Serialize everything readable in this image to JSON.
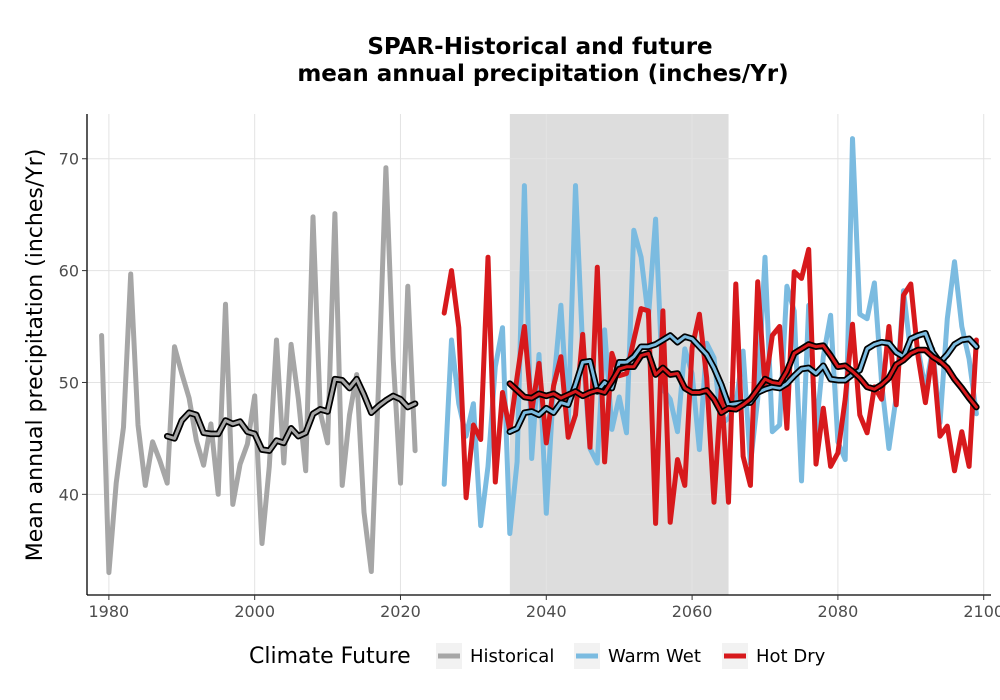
{
  "chart_data": {
    "type": "line",
    "title_line1": "SPAR-Historical and future",
    "title_line2": "mean annual precipitation (inches/Yr)",
    "xlabel": "",
    "ylabel": "Mean annual precipitation (inches/Yr)",
    "xlim": [
      1977,
      2101
    ],
    "ylim": [
      31,
      74
    ],
    "xticks": [
      "1980",
      "2000",
      "2020",
      "2040",
      "2060",
      "2080",
      "2100"
    ],
    "yticks": [
      "40",
      "50",
      "60",
      "70"
    ],
    "grid": true,
    "shaded_period": [
      2035,
      2065
    ],
    "legend": {
      "title": "Climate Future",
      "position": "bottom",
      "items": [
        {
          "label": "Historical",
          "color": "#a6a6a6"
        },
        {
          "label": "Warm Wet",
          "color": "#7bbbe0"
        },
        {
          "label": "Hot Dry",
          "color": "#d7191c"
        }
      ]
    },
    "series": [
      {
        "name": "Historical",
        "color": "#a6a6a6",
        "x": [
          1979,
          1980,
          1981,
          1982,
          1983,
          1984,
          1985,
          1986,
          1987,
          1988,
          1989,
          1990,
          1991,
          1992,
          1993,
          1994,
          1995,
          1996,
          1997,
          1998,
          1999,
          2000,
          2001,
          2002,
          2003,
          2004,
          2005,
          2006,
          2007,
          2008,
          2009,
          2010,
          2011,
          2012,
          2013,
          2014,
          2015,
          2016,
          2017,
          2018,
          2019,
          2020,
          2021,
          2022
        ],
        "values": [
          54.2,
          33.0,
          41.0,
          46.0,
          59.7,
          46.2,
          40.8,
          44.7,
          43.0,
          41.0,
          53.2,
          50.8,
          48.6,
          44.8,
          42.6,
          46.3,
          40.0,
          57.0,
          39.1,
          42.7,
          44.5,
          48.8,
          35.6,
          42.5,
          53.8,
          42.8,
          53.4,
          48.5,
          42.1,
          64.8,
          47.3,
          44.6,
          65.1,
          40.8,
          47.1,
          50.7,
          38.4,
          33.1,
          49.9,
          69.2,
          52.1,
          41.0,
          58.6,
          43.9
        ]
      },
      {
        "name": "Historical (smoothed)",
        "color": "#a6a6a6",
        "smoothed": true,
        "x": [
          1988,
          1989,
          1990,
          1991,
          1992,
          1993,
          1994,
          1995,
          1996,
          1997,
          1998,
          1999,
          2000,
          2001,
          2002,
          2003,
          2004,
          2005,
          2006,
          2007,
          2008,
          2009,
          2010,
          2011,
          2012,
          2013,
          2014,
          2015,
          2016,
          2017,
          2018,
          2019,
          2020,
          2021,
          2022
        ],
        "values": [
          45.2,
          45.0,
          46.6,
          47.3,
          47.1,
          45.5,
          45.4,
          45.4,
          46.6,
          46.3,
          46.5,
          45.6,
          45.4,
          44.0,
          43.9,
          44.8,
          44.6,
          45.9,
          45.2,
          45.5,
          47.2,
          47.6,
          47.4,
          50.3,
          50.2,
          49.5,
          50.3,
          48.9,
          47.3,
          47.9,
          48.4,
          48.8,
          48.5,
          47.8,
          48.1
        ]
      },
      {
        "name": "Warm Wet",
        "color": "#7bbbe0",
        "x": [
          2026,
          2027,
          2028,
          2029,
          2030,
          2031,
          2032,
          2033,
          2034,
          2035,
          2036,
          2037,
          2038,
          2039,
          2040,
          2041,
          2042,
          2043,
          2044,
          2045,
          2046,
          2047,
          2048,
          2049,
          2050,
          2051,
          2052,
          2053,
          2054,
          2055,
          2056,
          2057,
          2058,
          2059,
          2060,
          2061,
          2062,
          2063,
          2064,
          2065,
          2066,
          2067,
          2068,
          2069,
          2070,
          2071,
          2072,
          2073,
          2074,
          2075,
          2076,
          2077,
          2078,
          2079,
          2080,
          2081,
          2082,
          2083,
          2084,
          2085,
          2086,
          2087,
          2088,
          2089,
          2090,
          2091,
          2092,
          2093,
          2094,
          2095,
          2096,
          2097,
          2098,
          2099
        ],
        "values": [
          40.9,
          53.8,
          48.1,
          45.2,
          48.1,
          37.2,
          42.5,
          51.4,
          54.9,
          36.5,
          42.9,
          67.6,
          43.2,
          52.5,
          38.3,
          49.7,
          56.9,
          46.3,
          67.6,
          53.0,
          44.1,
          42.8,
          54.7,
          45.8,
          48.7,
          45.5,
          63.6,
          61.2,
          55.8,
          64.6,
          49.4,
          48.5,
          45.6,
          53.0,
          50.8,
          44.0,
          53.5,
          52.2,
          46.3,
          46.8,
          48.0,
          52.8,
          42.7,
          48.5,
          61.2,
          45.6,
          46.2,
          58.6,
          56.4,
          41.2,
          56.9,
          45.6,
          52.3,
          56.0,
          44.7,
          43.1,
          71.8,
          56.1,
          55.7,
          58.9,
          50.0,
          44.1,
          48.7,
          58.2,
          52.5,
          53.0,
          49.4,
          53.0,
          46.4,
          55.7,
          60.8,
          55.0,
          52.1,
          47.2
        ]
      },
      {
        "name": "Hot Dry",
        "color": "#d7191c",
        "x": [
          2026,
          2027,
          2028,
          2029,
          2030,
          2031,
          2032,
          2033,
          2034,
          2035,
          2036,
          2037,
          2038,
          2039,
          2040,
          2041,
          2042,
          2043,
          2044,
          2045,
          2046,
          2047,
          2048,
          2049,
          2050,
          2051,
          2052,
          2053,
          2054,
          2055,
          2056,
          2057,
          2058,
          2059,
          2060,
          2061,
          2062,
          2063,
          2064,
          2065,
          2066,
          2067,
          2068,
          2069,
          2070,
          2071,
          2072,
          2073,
          2074,
          2075,
          2076,
          2077,
          2078,
          2079,
          2080,
          2081,
          2082,
          2083,
          2084,
          2085,
          2086,
          2087,
          2088,
          2089,
          2090,
          2091,
          2092,
          2093,
          2094,
          2095,
          2096,
          2097,
          2098,
          2099
        ],
        "values": [
          56.2,
          60.0,
          54.9,
          39.7,
          46.2,
          44.9,
          61.2,
          41.1,
          49.1,
          45.7,
          50.5,
          55.0,
          47.4,
          51.7,
          44.6,
          49.7,
          52.3,
          45.1,
          47.1,
          54.3,
          44.2,
          60.3,
          42.9,
          52.6,
          50.6,
          50.8,
          53.8,
          56.6,
          56.4,
          37.4,
          56.4,
          37.5,
          43.1,
          40.8,
          53.1,
          56.1,
          50.4,
          39.3,
          49.5,
          39.3,
          58.8,
          43.4,
          40.8,
          59.0,
          49.6,
          54.2,
          55.0,
          45.9,
          59.9,
          59.3,
          61.9,
          42.7,
          47.7,
          42.5,
          43.7,
          48.5,
          55.2,
          47.1,
          45.5,
          49.6,
          48.5,
          55.0,
          48.0,
          57.8,
          58.8,
          52.3,
          48.2,
          52.7,
          45.2,
          46.1,
          42.1,
          45.6,
          42.5,
          53.8
        ]
      },
      {
        "name": "Warm Wet (smoothed)",
        "color": "#7bbbe0",
        "smoothed": true,
        "x": [
          2035,
          2036,
          2037,
          2038,
          2039,
          2040,
          2041,
          2042,
          2043,
          2044,
          2045,
          2046,
          2047,
          2048,
          2049,
          2050,
          2051,
          2052,
          2053,
          2054,
          2055,
          2056,
          2057,
          2058,
          2059,
          2060,
          2061,
          2062,
          2063,
          2064,
          2065,
          2066,
          2067,
          2068,
          2069,
          2070,
          2071,
          2072,
          2073,
          2074,
          2075,
          2076,
          2077,
          2078,
          2079,
          2080,
          2081,
          2082,
          2083,
          2084,
          2085,
          2086,
          2087,
          2088,
          2089,
          2090,
          2091,
          2092,
          2093,
          2094,
          2095,
          2096,
          2097,
          2098,
          2099
        ],
        "values": [
          45.6,
          45.9,
          47.3,
          47.4,
          47.1,
          47.7,
          47.3,
          48.2,
          48.0,
          49.8,
          51.8,
          51.9,
          49.2,
          50.0,
          49.5,
          51.8,
          51.8,
          52.3,
          53.2,
          53.2,
          53.4,
          53.8,
          54.2,
          53.6,
          54.1,
          53.9,
          53.2,
          52.5,
          51.3,
          49.8,
          48.0,
          48.1,
          48.2,
          48.2,
          49.1,
          49.4,
          49.6,
          49.5,
          49.9,
          50.6,
          51.2,
          51.3,
          50.8,
          51.5,
          50.3,
          50.2,
          50.2,
          50.7,
          51.1,
          53.0,
          53.4,
          53.6,
          53.5,
          52.7,
          52.3,
          53.9,
          54.2,
          54.4,
          52.7,
          51.8,
          52.5,
          53.4,
          53.8,
          53.9,
          53.2
        ]
      },
      {
        "name": "Hot Dry (smoothed)",
        "color": "#d7191c",
        "smoothed": true,
        "x": [
          2035,
          2036,
          2037,
          2038,
          2039,
          2040,
          2041,
          2042,
          2043,
          2044,
          2045,
          2046,
          2047,
          2048,
          2049,
          2050,
          2051,
          2052,
          2053,
          2054,
          2055,
          2056,
          2057,
          2058,
          2059,
          2060,
          2061,
          2062,
          2063,
          2064,
          2065,
          2066,
          2067,
          2068,
          2069,
          2070,
          2071,
          2072,
          2073,
          2074,
          2075,
          2076,
          2077,
          2078,
          2079,
          2080,
          2081,
          2082,
          2083,
          2084,
          2085,
          2086,
          2087,
          2088,
          2089,
          2090,
          2091,
          2092,
          2093,
          2094,
          2095,
          2096,
          2097,
          2098,
          2099
        ],
        "values": [
          49.9,
          49.3,
          48.7,
          48.6,
          49.0,
          48.8,
          49.0,
          48.6,
          48.9,
          49.2,
          48.8,
          49.1,
          49.3,
          49.1,
          50.1,
          51.2,
          51.4,
          51.4,
          52.4,
          52.6,
          50.7,
          51.3,
          50.7,
          50.8,
          49.5,
          49.1,
          49.1,
          49.3,
          48.5,
          47.3,
          47.7,
          47.6,
          48.0,
          48.5,
          49.4,
          50.3,
          50.0,
          49.9,
          51.0,
          52.6,
          53.0,
          53.4,
          53.2,
          53.3,
          52.4,
          51.4,
          51.5,
          51.0,
          50.4,
          49.6,
          49.4,
          49.8,
          50.4,
          51.6,
          52.0,
          52.6,
          52.9,
          52.9,
          52.3,
          51.9,
          51.3,
          50.3,
          49.5,
          48.6,
          47.8
        ]
      }
    ]
  }
}
